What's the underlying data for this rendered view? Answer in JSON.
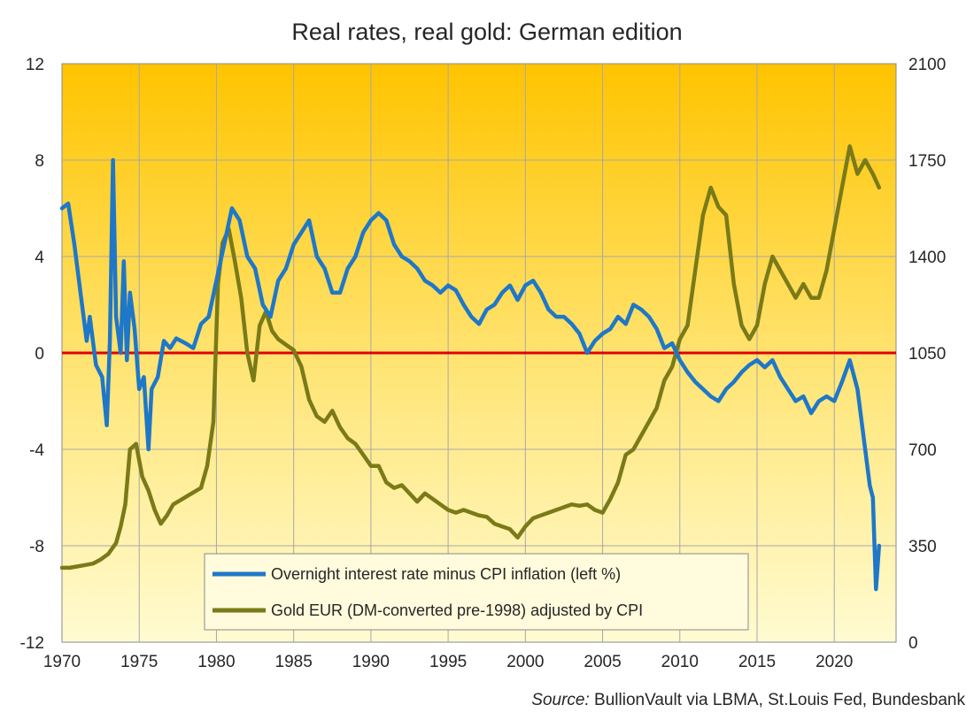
{
  "chart_data": {
    "type": "line",
    "title": "Real rates, real gold: German edition",
    "xlabel": "",
    "ylabel_left": "",
    "ylabel_right": "",
    "xlim": [
      1970,
      2024
    ],
    "ylim_left": [
      -12,
      12
    ],
    "ylim_right": [
      0,
      2100
    ],
    "x_ticks": [
      1970,
      1975,
      1980,
      1985,
      1990,
      1995,
      2000,
      2005,
      2010,
      2015,
      2020
    ],
    "x_tick_labels": [
      "1970",
      "1975",
      "1980",
      "1985",
      "1990",
      "1995",
      "2000",
      "2005",
      "2010",
      "2015",
      "2020"
    ],
    "y_left_ticks": [
      -12,
      -8,
      -4,
      0,
      4,
      8,
      12
    ],
    "y_left_tick_labels": [
      "-12",
      "-8",
      "-4",
      "0",
      "4",
      "8",
      "12"
    ],
    "y_right_ticks": [
      0,
      350,
      700,
      1050,
      1400,
      1750,
      2100
    ],
    "y_right_tick_labels": [
      "0",
      "350",
      "700",
      "1050",
      "1400",
      "1750",
      "2100"
    ],
    "grid": true,
    "reference_line": {
      "axis": "left",
      "value": 0,
      "color": "#e00000"
    },
    "legend_position": "bottom-center",
    "series": [
      {
        "name": "Overnight interest rate minus CPI inflation (left %)",
        "axis": "left",
        "color": "#1f77c8",
        "x": [
          1970.0,
          1970.4,
          1970.8,
          1971.2,
          1971.6,
          1971.8,
          1972.2,
          1972.6,
          1972.9,
          1973.1,
          1973.3,
          1973.5,
          1973.8,
          1974.0,
          1974.2,
          1974.4,
          1974.7,
          1975.0,
          1975.3,
          1975.6,
          1975.8,
          1976.2,
          1976.6,
          1977.0,
          1977.4,
          1978.0,
          1978.5,
          1979.0,
          1979.5,
          1980.0,
          1980.5,
          1981.0,
          1981.5,
          1982.0,
          1982.5,
          1983.0,
          1983.5,
          1984.0,
          1984.5,
          1985.0,
          1985.5,
          1986.0,
          1986.5,
          1987.0,
          1987.5,
          1988.0,
          1988.5,
          1989.0,
          1989.5,
          1990.0,
          1990.5,
          1991.0,
          1991.5,
          1992.0,
          1992.5,
          1993.0,
          1993.5,
          1994.0,
          1994.5,
          1995.0,
          1995.5,
          1996.0,
          1996.5,
          1997.0,
          1997.5,
          1998.0,
          1998.5,
          1999.0,
          1999.5,
          2000.0,
          2000.5,
          2001.0,
          2001.5,
          2002.0,
          2002.5,
          2003.0,
          2003.5,
          2004.0,
          2004.5,
          2005.0,
          2005.5,
          2006.0,
          2006.5,
          2007.0,
          2007.5,
          2008.0,
          2008.5,
          2009.0,
          2009.5,
          2010.0,
          2010.5,
          2011.0,
          2011.5,
          2012.0,
          2012.5,
          2013.0,
          2013.5,
          2014.0,
          2014.5,
          2015.0,
          2015.5,
          2016.0,
          2016.5,
          2017.0,
          2017.5,
          2018.0,
          2018.5,
          2019.0,
          2019.5,
          2020.0,
          2020.5,
          2021.0,
          2021.5,
          2022.0,
          2022.3,
          2022.5,
          2022.7,
          2022.9
        ],
        "y": [
          6.0,
          6.2,
          4.5,
          2.5,
          0.5,
          1.5,
          -0.5,
          -1.0,
          -3.0,
          0.5,
          8.0,
          1.5,
          0.0,
          3.8,
          -0.3,
          2.5,
          1.0,
          -1.5,
          -1.0,
          -4.0,
          -1.5,
          -1.0,
          0.5,
          0.2,
          0.6,
          0.4,
          0.2,
          1.2,
          1.5,
          3.0,
          4.5,
          6.0,
          5.5,
          4.0,
          3.5,
          2.0,
          1.5,
          3.0,
          3.5,
          4.5,
          5.0,
          5.5,
          4.0,
          3.5,
          2.5,
          2.5,
          3.5,
          4.0,
          5.0,
          5.5,
          5.8,
          5.5,
          4.5,
          4.0,
          3.8,
          3.5,
          3.0,
          2.8,
          2.5,
          2.8,
          2.6,
          2.0,
          1.5,
          1.2,
          1.8,
          2.0,
          2.5,
          2.8,
          2.2,
          2.8,
          3.0,
          2.5,
          1.8,
          1.5,
          1.5,
          1.2,
          0.8,
          0.0,
          0.5,
          0.8,
          1.0,
          1.5,
          1.2,
          2.0,
          1.8,
          1.5,
          1.0,
          0.2,
          0.4,
          -0.3,
          -0.8,
          -1.2,
          -1.5,
          -1.8,
          -2.0,
          -1.5,
          -1.2,
          -0.8,
          -0.5,
          -0.3,
          -0.6,
          -0.3,
          -1.0,
          -1.5,
          -2.0,
          -1.8,
          -2.5,
          -2.0,
          -1.8,
          -2.0,
          -1.2,
          -0.3,
          -1.5,
          -4.0,
          -5.5,
          -6.0,
          -9.8,
          -8.0
        ]
      },
      {
        "name": "Gold EUR (DM-converted pre-1998) adjusted by CPI",
        "axis": "right",
        "color": "#7a7a18",
        "x": [
          1970.0,
          1970.5,
          1971.0,
          1971.5,
          1972.0,
          1972.5,
          1973.0,
          1973.5,
          1973.8,
          1974.1,
          1974.4,
          1974.8,
          1975.2,
          1975.6,
          1976.0,
          1976.4,
          1976.8,
          1977.2,
          1977.8,
          1978.4,
          1979.0,
          1979.4,
          1979.8,
          1980.1,
          1980.4,
          1980.8,
          1981.2,
          1981.6,
          1982.0,
          1982.4,
          1982.8,
          1983.2,
          1983.6,
          1984.0,
          1984.5,
          1985.0,
          1985.5,
          1986.0,
          1986.5,
          1987.0,
          1987.5,
          1988.0,
          1988.5,
          1989.0,
          1989.5,
          1990.0,
          1990.5,
          1991.0,
          1991.5,
          1992.0,
          1992.5,
          1993.0,
          1993.5,
          1994.0,
          1994.5,
          1995.0,
          1995.5,
          1996.0,
          1996.5,
          1997.0,
          1997.5,
          1998.0,
          1998.5,
          1999.0,
          1999.5,
          2000.0,
          2000.5,
          2001.0,
          2001.5,
          2002.0,
          2002.5,
          2003.0,
          2003.5,
          2004.0,
          2004.5,
          2005.0,
          2005.5,
          2006.0,
          2006.5,
          2007.0,
          2007.5,
          2008.0,
          2008.5,
          2009.0,
          2009.5,
          2010.0,
          2010.5,
          2011.0,
          2011.5,
          2012.0,
          2012.5,
          2013.0,
          2013.5,
          2014.0,
          2014.5,
          2015.0,
          2015.5,
          2016.0,
          2016.5,
          2017.0,
          2017.5,
          2018.0,
          2018.5,
          2019.0,
          2019.5,
          2020.0,
          2020.5,
          2021.0,
          2021.5,
          2022.0,
          2022.5,
          2022.9
        ],
        "y": [
          270,
          270,
          275,
          280,
          285,
          300,
          320,
          360,
          420,
          500,
          700,
          720,
          600,
          550,
          480,
          430,
          460,
          500,
          520,
          540,
          560,
          640,
          800,
          1300,
          1450,
          1500,
          1380,
          1250,
          1050,
          950,
          1150,
          1200,
          1130,
          1100,
          1080,
          1060,
          1000,
          880,
          820,
          800,
          840,
          780,
          740,
          720,
          680,
          640,
          640,
          580,
          560,
          570,
          540,
          510,
          540,
          520,
          500,
          480,
          470,
          480,
          470,
          460,
          455,
          430,
          420,
          410,
          380,
          420,
          450,
          460,
          470,
          480,
          490,
          500,
          495,
          500,
          480,
          470,
          520,
          580,
          680,
          700,
          750,
          800,
          850,
          950,
          1000,
          1100,
          1150,
          1350,
          1550,
          1650,
          1580,
          1550,
          1300,
          1150,
          1100,
          1150,
          1300,
          1400,
          1350,
          1300,
          1250,
          1300,
          1250,
          1250,
          1350,
          1500,
          1650,
          1800,
          1700,
          1750,
          1700,
          1650
        ]
      }
    ],
    "legend": [
      "Overnight interest rate minus CPI inflation (left %)",
      "Gold EUR (DM-converted pre-1998) adjusted by CPI"
    ],
    "source_label": "Source:",
    "source_text": "BullionVault via LBMA, St.Louis Fed, Bundesbank"
  }
}
